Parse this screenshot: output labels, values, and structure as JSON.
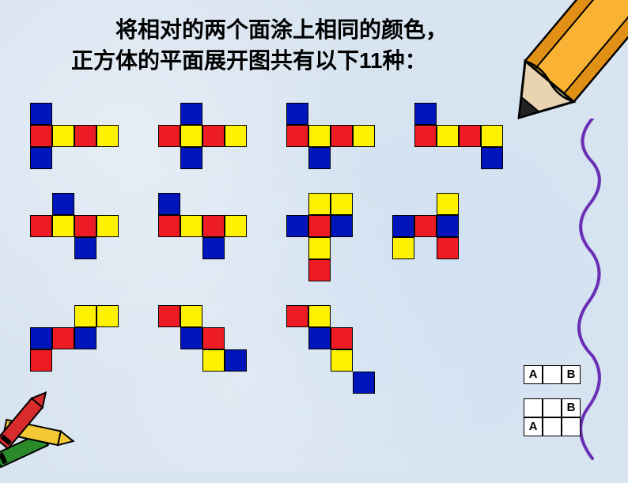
{
  "title_line1": "　　将相对的两个面涂上相同的颜色，",
  "title_line2": "正方体的平面展开图共有以下11种：",
  "colors": {
    "red": "#ed1c24",
    "blue": "#0015bc",
    "yellow": "#fff200",
    "bg": "#d8e4f0",
    "squiggle": "#6a2fb5",
    "pencil_body": "#f9b233",
    "pencil_tip": "#e8d4b0",
    "crayon_red": "#d82c2c",
    "crayon_yellow": "#f2c934",
    "crayon_green": "#2a8a2a"
  },
  "cell_size": 28,
  "nets": [
    [
      {
        "cols": 4,
        "rows": 3,
        "cells": [
          [
            "B",
            "",
            "",
            ""
          ],
          [
            "R",
            "Y",
            "R",
            "Y"
          ],
          [
            "B",
            "",
            "",
            ""
          ]
        ]
      },
      {
        "cols": 4,
        "rows": 3,
        "cells": [
          [
            "",
            "B",
            "",
            ""
          ],
          [
            "R",
            "Y",
            "R",
            "Y"
          ],
          [
            "",
            "B",
            "",
            ""
          ]
        ]
      },
      {
        "cols": 4,
        "rows": 3,
        "cells": [
          [
            "B",
            "",
            "",
            ""
          ],
          [
            "R",
            "Y",
            "R",
            "Y"
          ],
          [
            "",
            "B",
            "",
            ""
          ]
        ]
      },
      {
        "cols": 4,
        "rows": 3,
        "cells": [
          [
            "B",
            "",
            "",
            ""
          ],
          [
            "R",
            "Y",
            "R",
            "Y"
          ],
          [
            "",
            "",
            "",
            "B"
          ]
        ]
      }
    ],
    [
      {
        "cols": 4,
        "rows": 3,
        "cells": [
          [
            "",
            "B",
            "",
            ""
          ],
          [
            "R",
            "Y",
            "R",
            "Y"
          ],
          [
            "",
            "",
            "B",
            ""
          ]
        ]
      },
      {
        "cols": 4,
        "rows": 3,
        "cells": [
          [
            "B",
            "",
            "",
            ""
          ],
          [
            "R",
            "Y",
            "R",
            "Y"
          ],
          [
            "",
            "",
            "B",
            ""
          ]
        ]
      },
      {
        "cols": 3,
        "rows": 4,
        "cells": [
          [
            "",
            "Y",
            "Y"
          ],
          [
            "B",
            "R",
            "B"
          ],
          [
            "",
            "Y",
            ""
          ],
          [
            "",
            "R",
            ""
          ]
        ]
      },
      {
        "cols": 3,
        "rows": 3,
        "cells": [
          [
            "",
            "",
            "Y"
          ],
          [
            "B",
            "R",
            "B"
          ],
          [
            "Y",
            "",
            "R"
          ]
        ]
      }
    ],
    [
      {
        "cols": 4,
        "rows": 3,
        "cells": [
          [
            "",
            "",
            "Y",
            "Y"
          ],
          [
            "B",
            "R",
            "B",
            ""
          ],
          [
            "R",
            "",
            "",
            ""
          ]
        ]
      },
      {
        "cols": 4,
        "rows": 3,
        "cells": [
          [
            "R",
            "Y",
            "",
            ""
          ],
          [
            "",
            "B",
            "R",
            ""
          ],
          [
            "",
            "",
            "Y",
            "B"
          ]
        ]
      },
      {
        "cols": 4,
        "rows": 4,
        "cells": [
          [
            "R",
            "Y",
            "",
            ""
          ],
          [
            "",
            "B",
            "R",
            ""
          ],
          [
            "",
            "",
            "Y",
            ""
          ],
          [
            "",
            "",
            "",
            "B"
          ]
        ]
      }
    ]
  ],
  "ab_labels": {
    "A": "A",
    "B": "B"
  },
  "ab_diagrams": [
    {
      "cols": 3,
      "rows": 1,
      "cells": [
        [
          "A",
          "",
          "B"
        ]
      ]
    },
    {
      "cols": 3,
      "rows": 2,
      "cells": [
        [
          "",
          "",
          "B"
        ],
        [
          "A",
          "",
          ""
        ]
      ]
    }
  ]
}
